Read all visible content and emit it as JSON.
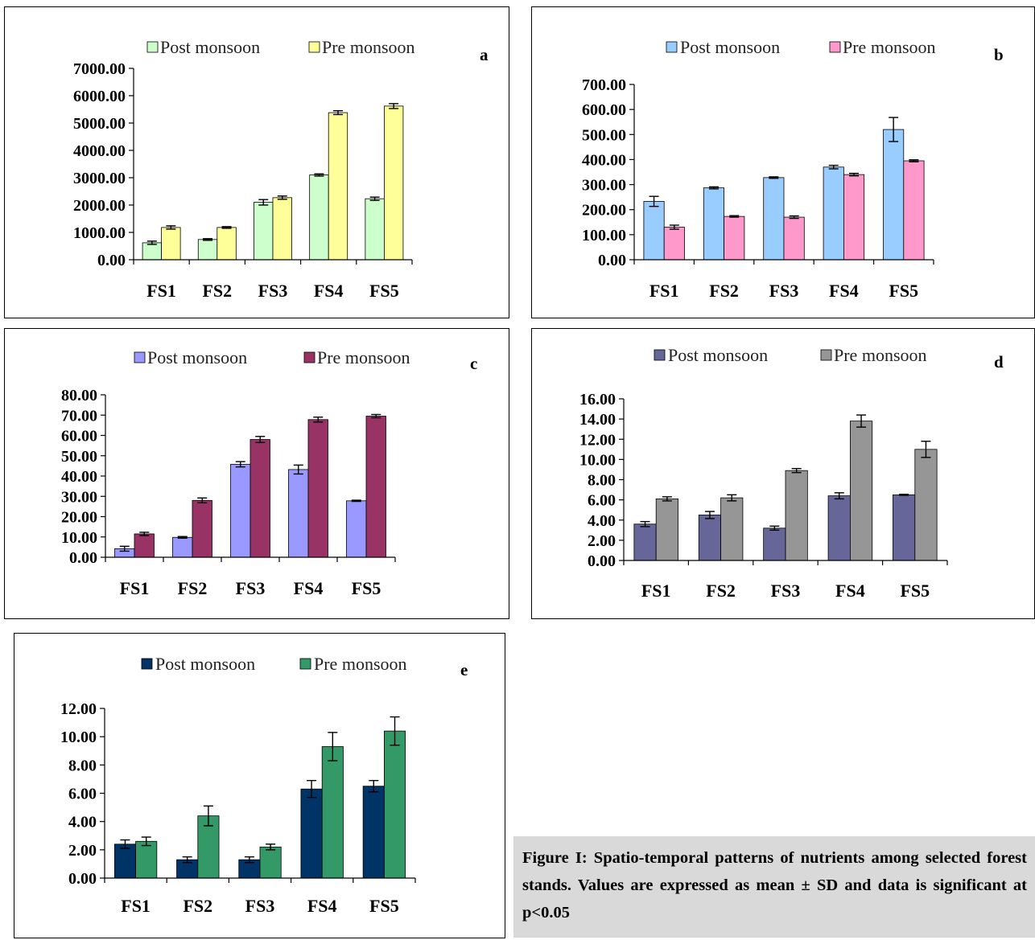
{
  "legend": {
    "post": "Post monsoon",
    "pre": "Pre monsoon"
  },
  "caption": "Figure I: Spatio-temporal patterns of nutrients among selected forest stands. Values are expressed as mean ± SD and data is significant at p<0.05",
  "chart_data": [
    {
      "type": "bar",
      "label": "a",
      "categories": [
        "FS1",
        "FS2",
        "FS3",
        "FS4",
        "FS5"
      ],
      "ylim": [
        0,
        7000
      ],
      "yticks": [
        "0.00",
        "1000.00",
        "2000.00",
        "3000.00",
        "4000.00",
        "5000.00",
        "6000.00",
        "7000.00"
      ],
      "series": [
        {
          "name": "Post monsoon",
          "color": "#ccffcc",
          "values": [
            620,
            740,
            2100,
            3100,
            2230
          ],
          "errors": [
            60,
            30,
            100,
            40,
            60
          ]
        },
        {
          "name": "Pre monsoon",
          "color": "#ffff99",
          "values": [
            1180,
            1180,
            2270,
            5380,
            5620
          ],
          "errors": [
            60,
            30,
            60,
            70,
            90
          ]
        }
      ]
    },
    {
      "type": "bar",
      "label": "b",
      "categories": [
        "FS1",
        "FS2",
        "FS3",
        "FS4",
        "FS5"
      ],
      "ylim": [
        0,
        700
      ],
      "yticks": [
        "0.00",
        "100.00",
        "200.00",
        "300.00",
        "400.00",
        "500.00",
        "600.00",
        "700.00"
      ],
      "series": [
        {
          "name": "Post monsoon",
          "color": "#99ccff",
          "values": [
            233,
            287,
            328,
            370,
            520
          ],
          "errors": [
            20,
            4,
            3,
            7,
            48
          ]
        },
        {
          "name": "Pre monsoon",
          "color": "#ff99cc",
          "values": [
            130,
            173,
            170,
            340,
            395
          ],
          "errors": [
            8,
            3,
            5,
            5,
            4
          ]
        }
      ]
    },
    {
      "type": "bar",
      "label": "c",
      "categories": [
        "FS1",
        "FS2",
        "FS3",
        "FS4",
        "FS5"
      ],
      "ylim": [
        0,
        80
      ],
      "yticks": [
        "0.00",
        "10.00",
        "20.00",
        "30.00",
        "40.00",
        "50.00",
        "60.00",
        "70.00",
        "80.00"
      ],
      "series": [
        {
          "name": "Post monsoon",
          "color": "#9999ff",
          "values": [
            4.2,
            9.8,
            45.8,
            43.2,
            27.8
          ],
          "errors": [
            1.2,
            0.4,
            1.3,
            2.2,
            0.3
          ]
        },
        {
          "name": "Pre monsoon",
          "color": "#993366",
          "values": [
            11.5,
            28.0,
            58.0,
            67.8,
            69.5
          ],
          "errors": [
            0.8,
            1.2,
            1.5,
            1.2,
            0.8
          ]
        }
      ]
    },
    {
      "type": "bar",
      "label": "d",
      "categories": [
        "FS1",
        "FS2",
        "FS3",
        "FS4",
        "FS5"
      ],
      "ylim": [
        0,
        16
      ],
      "yticks": [
        "0.00",
        "2.00",
        "4.00",
        "6.00",
        "8.00",
        "10.00",
        "12.00",
        "14.00",
        "16.00"
      ],
      "series": [
        {
          "name": "Post monsoon",
          "color": "#666699",
          "values": [
            3.6,
            4.5,
            3.2,
            6.4,
            6.5
          ],
          "errors": [
            0.25,
            0.35,
            0.2,
            0.3,
            0.05
          ]
        },
        {
          "name": "Pre monsoon",
          "color": "#969696",
          "values": [
            6.1,
            6.2,
            8.9,
            13.8,
            11.0
          ],
          "errors": [
            0.2,
            0.3,
            0.2,
            0.6,
            0.8
          ]
        }
      ]
    },
    {
      "type": "bar",
      "label": "e",
      "categories": [
        "FS1",
        "FS2",
        "FS3",
        "FS4",
        "FS5"
      ],
      "ylim": [
        0,
        12
      ],
      "yticks": [
        "0.00",
        "2.00",
        "4.00",
        "6.00",
        "8.00",
        "10.00",
        "12.00"
      ],
      "series": [
        {
          "name": "Post monsoon",
          "color": "#003366",
          "values": [
            2.4,
            1.3,
            1.3,
            6.3,
            6.5
          ],
          "errors": [
            0.3,
            0.2,
            0.2,
            0.6,
            0.4
          ]
        },
        {
          "name": "Pre monsoon",
          "color": "#339966",
          "values": [
            2.6,
            4.4,
            2.2,
            9.3,
            10.4
          ],
          "errors": [
            0.3,
            0.7,
            0.2,
            1.0,
            1.0
          ]
        }
      ]
    }
  ]
}
